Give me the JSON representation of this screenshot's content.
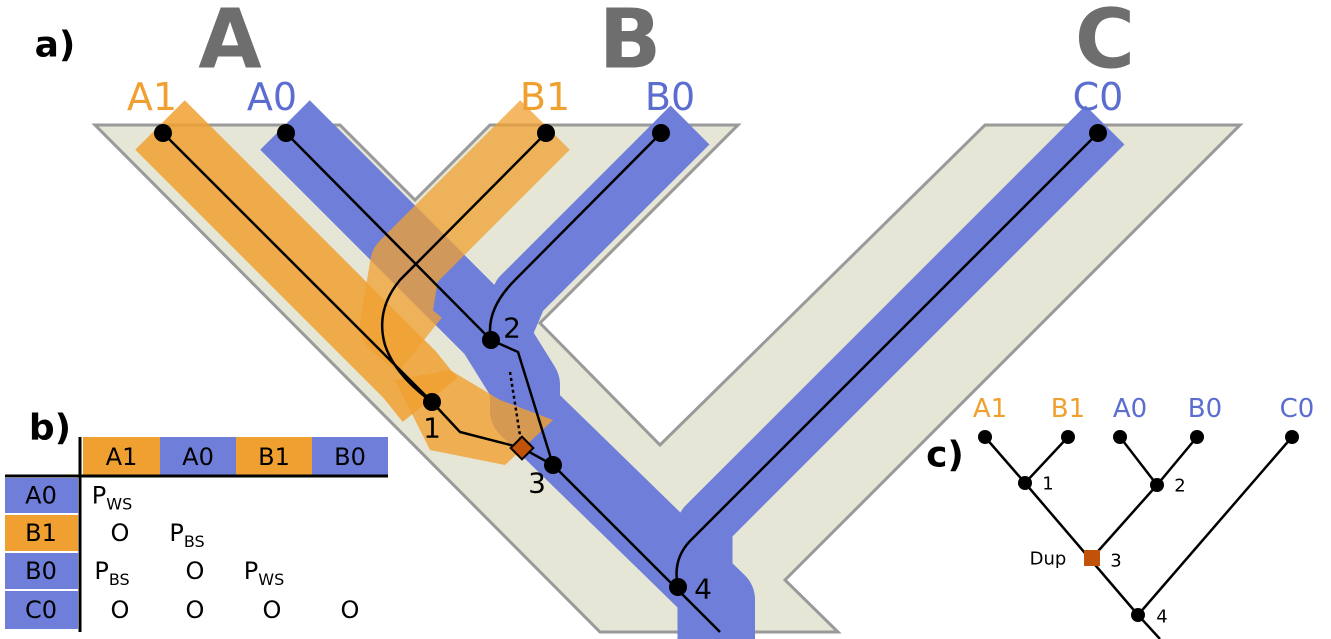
{
  "panel_a": {
    "label": "a)",
    "species": [
      "A",
      "B",
      "C"
    ],
    "genes": [
      "A1",
      "A0",
      "B1",
      "B0",
      "C0"
    ],
    "nodes": [
      "1",
      "2",
      "3",
      "4"
    ]
  },
  "panel_b": {
    "label": "b)",
    "header": [
      "A1",
      "A0",
      "B1",
      "B0"
    ],
    "rows": [
      {
        "label": "A0",
        "cells": [
          {
            "main": "P",
            "sub": "WS"
          }
        ]
      },
      {
        "label": "B1",
        "cells": [
          "O",
          {
            "main": "P",
            "sub": "BS"
          }
        ]
      },
      {
        "label": "B0",
        "cells": [
          {
            "main": "P",
            "sub": "BS"
          },
          "O",
          {
            "main": "P",
            "sub": "WS"
          }
        ]
      },
      {
        "label": "C0",
        "cells": [
          "O",
          "O",
          "O",
          "O"
        ]
      }
    ]
  },
  "panel_c": {
    "label": "c)",
    "leaves": [
      "A1",
      "B1",
      "A0",
      "B0",
      "C0"
    ],
    "nodes": [
      "1",
      "2",
      "3",
      "4"
    ],
    "duplication": "Dup"
  }
}
